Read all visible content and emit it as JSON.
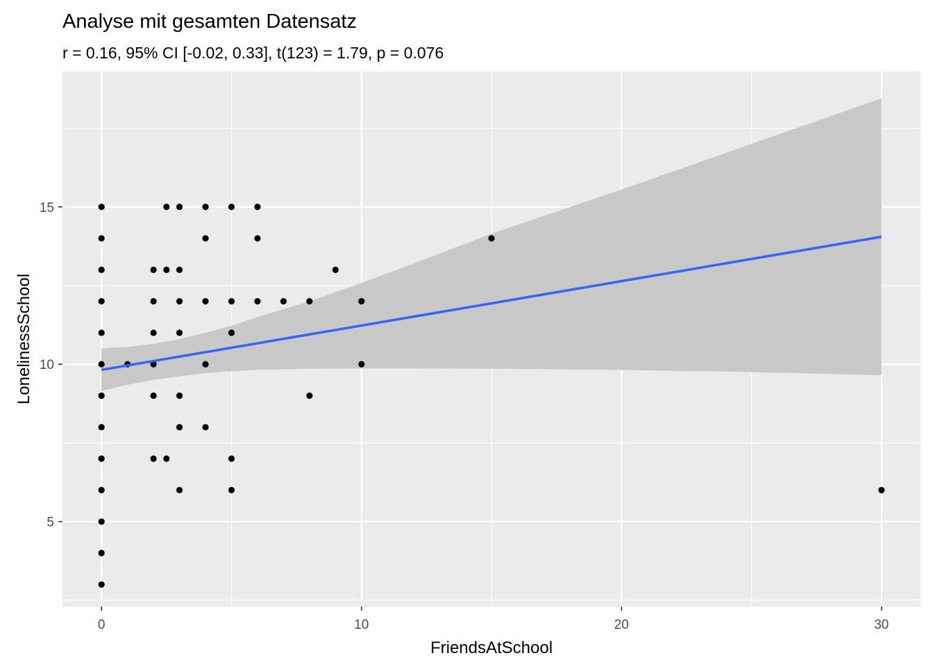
{
  "chart_data": {
    "type": "scatter",
    "title": "Analyse mit gesamten Datensatz",
    "subtitle": "r = 0.16, 95% CI [-0.02, 0.33], t(123) = 1.79, p = 0.076",
    "xlabel": "FriendsAtSchool",
    "ylabel": "LonelinessSchool",
    "xlim": [
      -1.5,
      31.5
    ],
    "ylim": [
      2.3,
      19.3
    ],
    "x_ticks": [
      0,
      10,
      20,
      30
    ],
    "x_tick_labels": [
      "0",
      "10",
      "20",
      "30"
    ],
    "y_ticks": [
      5,
      10,
      15
    ],
    "y_tick_labels": [
      "5",
      "10",
      "15"
    ],
    "grid": true,
    "colors": {
      "panel": "#ebebeb",
      "grid": "#ffffff",
      "points": "#000000",
      "fit_line": "#3366ff",
      "ci_band": "#c8c8c8"
    },
    "points": [
      {
        "x": 0,
        "y": 3
      },
      {
        "x": 0,
        "y": 4
      },
      {
        "x": 0,
        "y": 5
      },
      {
        "x": 0,
        "y": 6
      },
      {
        "x": 0,
        "y": 7
      },
      {
        "x": 0,
        "y": 8
      },
      {
        "x": 0,
        "y": 9
      },
      {
        "x": 0,
        "y": 10
      },
      {
        "x": 0,
        "y": 11
      },
      {
        "x": 0,
        "y": 12
      },
      {
        "x": 0,
        "y": 13
      },
      {
        "x": 0,
        "y": 14
      },
      {
        "x": 0,
        "y": 15
      },
      {
        "x": 1,
        "y": 10
      },
      {
        "x": 2,
        "y": 7
      },
      {
        "x": 2,
        "y": 9
      },
      {
        "x": 2,
        "y": 10
      },
      {
        "x": 2,
        "y": 11
      },
      {
        "x": 2,
        "y": 12
      },
      {
        "x": 2,
        "y": 13
      },
      {
        "x": 2.5,
        "y": 7
      },
      {
        "x": 2.5,
        "y": 13
      },
      {
        "x": 2.5,
        "y": 15
      },
      {
        "x": 3,
        "y": 6
      },
      {
        "x": 3,
        "y": 8
      },
      {
        "x": 3,
        "y": 9
      },
      {
        "x": 3,
        "y": 11
      },
      {
        "x": 3,
        "y": 12
      },
      {
        "x": 3,
        "y": 13
      },
      {
        "x": 3,
        "y": 15
      },
      {
        "x": 4,
        "y": 8
      },
      {
        "x": 4,
        "y": 10
      },
      {
        "x": 4,
        "y": 12
      },
      {
        "x": 4,
        "y": 14
      },
      {
        "x": 4,
        "y": 15
      },
      {
        "x": 5,
        "y": 6
      },
      {
        "x": 5,
        "y": 7
      },
      {
        "x": 5,
        "y": 11
      },
      {
        "x": 5,
        "y": 12
      },
      {
        "x": 5,
        "y": 15
      },
      {
        "x": 6,
        "y": 12
      },
      {
        "x": 6,
        "y": 14
      },
      {
        "x": 6,
        "y": 15
      },
      {
        "x": 7,
        "y": 12
      },
      {
        "x": 8,
        "y": 9
      },
      {
        "x": 8,
        "y": 12
      },
      {
        "x": 9,
        "y": 13
      },
      {
        "x": 10,
        "y": 10
      },
      {
        "x": 10,
        "y": 12
      },
      {
        "x": 15,
        "y": 14
      },
      {
        "x": 30,
        "y": 6
      }
    ],
    "fit_line": {
      "x": [
        0,
        30
      ],
      "y": [
        9.82,
        14.05
      ]
    },
    "ci_band": [
      {
        "x": 0,
        "lower": 9.15,
        "upper": 10.5
      },
      {
        "x": 1,
        "lower": 9.35,
        "upper": 10.55
      },
      {
        "x": 2,
        "lower": 9.5,
        "upper": 10.65
      },
      {
        "x": 3,
        "lower": 9.62,
        "upper": 10.8
      },
      {
        "x": 4,
        "lower": 9.72,
        "upper": 11.0
      },
      {
        "x": 5,
        "lower": 9.78,
        "upper": 11.22
      },
      {
        "x": 6,
        "lower": 9.82,
        "upper": 11.5
      },
      {
        "x": 8,
        "lower": 9.86,
        "upper": 12.0
      },
      {
        "x": 10,
        "lower": 9.87,
        "upper": 12.58
      },
      {
        "x": 12,
        "lower": 9.87,
        "upper": 13.2
      },
      {
        "x": 15,
        "lower": 9.86,
        "upper": 14.15
      },
      {
        "x": 20,
        "lower": 9.82,
        "upper": 15.55
      },
      {
        "x": 25,
        "lower": 9.75,
        "upper": 17.0
      },
      {
        "x": 30,
        "lower": 9.65,
        "upper": 18.45
      }
    ]
  }
}
